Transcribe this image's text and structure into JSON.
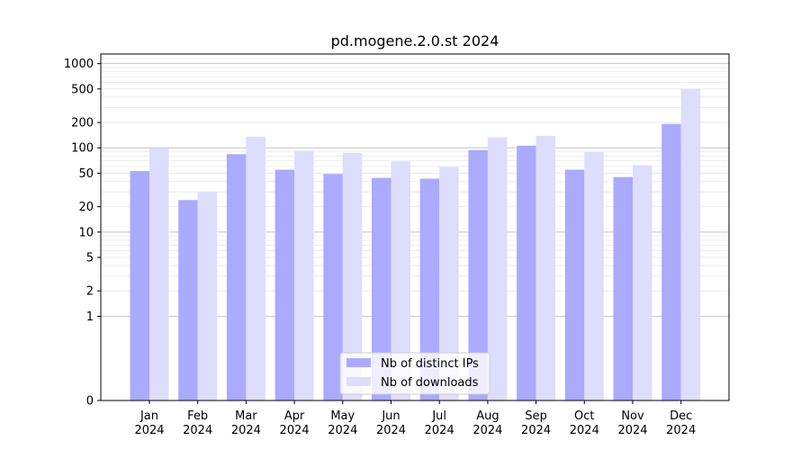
{
  "chart_data": {
    "type": "bar",
    "title": "pd.mogene.2.0.st 2024",
    "xlabel": "",
    "ylabel": "",
    "yscale": "symlog",
    "ylim": [
      0,
      1300
    ],
    "yticks": [
      0,
      1,
      2,
      5,
      10,
      20,
      50,
      100,
      200,
      500,
      1000
    ],
    "ytick_labels": [
      "0",
      "1",
      "2",
      "5",
      "10",
      "20",
      "50",
      "100",
      "200",
      "500",
      "1000"
    ],
    "categories": [
      {
        "month": "Jan",
        "year": "2024"
      },
      {
        "month": "Feb",
        "year": "2024"
      },
      {
        "month": "Mar",
        "year": "2024"
      },
      {
        "month": "Apr",
        "year": "2024"
      },
      {
        "month": "May",
        "year": "2024"
      },
      {
        "month": "Jun",
        "year": "2024"
      },
      {
        "month": "Jul",
        "year": "2024"
      },
      {
        "month": "Aug",
        "year": "2024"
      },
      {
        "month": "Sep",
        "year": "2024"
      },
      {
        "month": "Oct",
        "year": "2024"
      },
      {
        "month": "Nov",
        "year": "2024"
      },
      {
        "month": "Dec",
        "year": "2024"
      }
    ],
    "series": [
      {
        "name": "Nb of distinct IPs",
        "color": "#aaaaff",
        "values": [
          53,
          24,
          84,
          55,
          49,
          44,
          43,
          94,
          106,
          55,
          45,
          192
        ]
      },
      {
        "name": "Nb of downloads",
        "color": "#ddddff",
        "values": [
          99,
          30,
          136,
          92,
          87,
          69,
          59,
          133,
          139,
          89,
          62,
          500
        ]
      }
    ],
    "grid": true,
    "legend_position": "lower-center"
  }
}
